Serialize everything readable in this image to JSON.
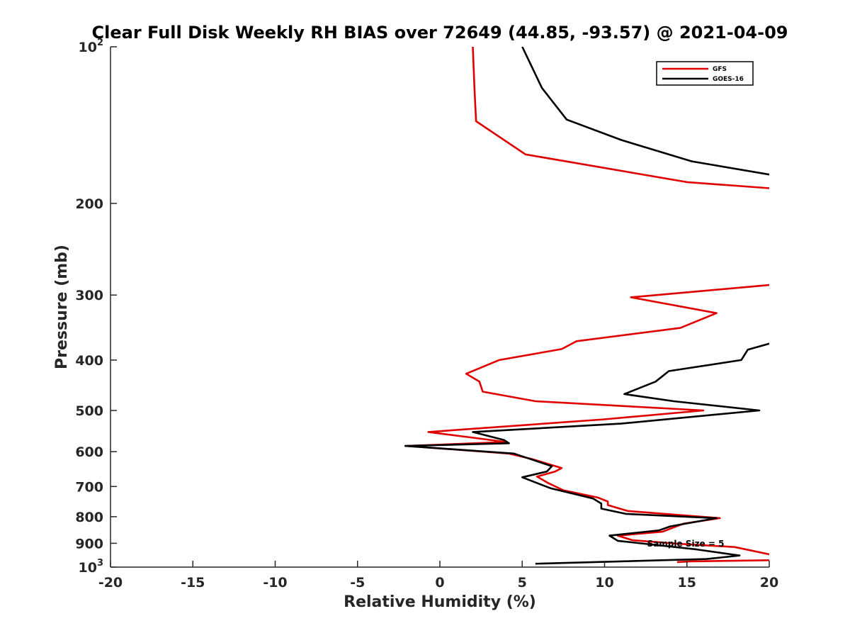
{
  "chart_data": {
    "type": "line",
    "title": "Clear Full Disk Weekly RH BIAS over 72649 (44.85, -93.57) @ 2021-04-09",
    "xlabel": "Relative Humidity (%)",
    "ylabel": "Pressure (mb)",
    "xlim": [
      -20,
      20
    ],
    "ylim": [
      100,
      1000
    ],
    "y_scale": "log",
    "y_reversed": true,
    "grid": false,
    "legend_position": "top-right",
    "x_ticks": [
      "-20",
      "-15",
      "-10",
      "-5",
      "0",
      "5",
      "10",
      "15",
      "20"
    ],
    "y_ticks": [
      {
        "value": 100,
        "base": "10",
        "exp": "2"
      },
      {
        "value": 200,
        "base": "200",
        "exp": ""
      },
      {
        "value": 300,
        "base": "300",
        "exp": ""
      },
      {
        "value": 400,
        "base": "400",
        "exp": ""
      },
      {
        "value": 500,
        "base": "500",
        "exp": ""
      },
      {
        "value": 600,
        "base": "600",
        "exp": ""
      },
      {
        "value": 700,
        "base": "700",
        "exp": ""
      },
      {
        "value": 800,
        "base": "800",
        "exp": ""
      },
      {
        "value": 900,
        "base": "900",
        "exp": ""
      },
      {
        "value": 1000,
        "base": "10",
        "exp": "3"
      }
    ],
    "annotation": "Sample Size = 5",
    "series": [
      {
        "name": "GFS",
        "color": "#e00000",
        "points": [
          [
            2.0,
            100
          ],
          [
            2.1,
            120
          ],
          [
            2.2,
            139
          ],
          [
            5.2,
            161
          ],
          [
            15.0,
            182
          ],
          [
            20.0,
            187
          ],
          [
            null,
            null
          ],
          [
            20.0,
            287
          ],
          [
            11.6,
            303
          ],
          [
            16.8,
            325
          ],
          [
            14.6,
            347
          ],
          [
            8.3,
            368
          ],
          [
            7.4,
            381
          ],
          [
            3.6,
            400
          ],
          [
            1.6,
            425
          ],
          [
            2.4,
            440
          ],
          [
            2.6,
            460
          ],
          [
            5.8,
            480
          ],
          [
            16.0,
            500
          ],
          [
            10.0,
            520
          ],
          [
            -0.7,
            550
          ],
          [
            2.2,
            565
          ],
          [
            4.0,
            575
          ],
          [
            -2.0,
            585
          ],
          [
            4.2,
            605
          ],
          [
            5.6,
            620
          ],
          [
            7.4,
            645
          ],
          [
            7.0,
            655
          ],
          [
            5.9,
            670
          ],
          [
            6.6,
            690
          ],
          [
            7.5,
            712
          ],
          [
            9.6,
            735
          ],
          [
            10.2,
            748
          ],
          [
            10.2,
            760
          ],
          [
            11.4,
            780
          ],
          [
            17.0,
            805
          ],
          [
            14.8,
            825
          ],
          [
            13.5,
            855
          ],
          [
            10.8,
            870
          ],
          [
            11.7,
            888
          ],
          [
            14.5,
            902
          ],
          [
            17.9,
            915
          ],
          [
            20.0,
            945
          ],
          [
            null,
            null
          ],
          [
            20.0,
            970
          ],
          [
            15.2,
            975
          ],
          [
            14.4,
            978
          ]
        ]
      },
      {
        "name": "GOES-16",
        "color": "#000000",
        "points": [
          [
            5.0,
            100
          ],
          [
            6.2,
            120
          ],
          [
            7.7,
            138
          ],
          [
            11.0,
            151
          ],
          [
            15.3,
            166
          ],
          [
            20.0,
            176
          ],
          [
            null,
            null
          ],
          [
            20.0,
            372
          ],
          [
            18.7,
            382
          ],
          [
            18.3,
            400
          ],
          [
            13.9,
            420
          ],
          [
            13.1,
            440
          ],
          [
            11.2,
            465
          ],
          [
            14.2,
            480
          ],
          [
            19.4,
            500
          ],
          [
            11.0,
            530
          ],
          [
            2.0,
            550
          ],
          [
            3.9,
            570
          ],
          [
            4.2,
            578
          ],
          [
            -2.1,
            585
          ],
          [
            4.5,
            605
          ],
          [
            6.8,
            640
          ],
          [
            6.5,
            655
          ],
          [
            5.0,
            672
          ],
          [
            6.7,
            705
          ],
          [
            9.3,
            738
          ],
          [
            9.8,
            755
          ],
          [
            9.8,
            772
          ],
          [
            11.3,
            790
          ],
          [
            16.8,
            805
          ],
          [
            14.0,
            835
          ],
          [
            13.3,
            850
          ],
          [
            10.3,
            870
          ],
          [
            10.8,
            890
          ],
          [
            15.6,
            925
          ],
          [
            18.2,
            950
          ],
          [
            16.2,
            965
          ],
          [
            5.8,
            985
          ]
        ]
      }
    ]
  }
}
